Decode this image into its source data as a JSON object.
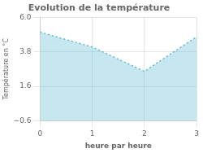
{
  "chart_data": {
    "type": "area",
    "title": "Evolution de la température",
    "xlabel": "heure par heure",
    "ylabel": "Température en °C",
    "x": [
      0,
      1,
      2,
      3
    ],
    "values": [
      5.05,
      4.1,
      2.55,
      4.75
    ],
    "color": "#5bb8d4",
    "line_style": "dotted",
    "xlim": [
      0,
      3
    ],
    "ylim": [
      -0.6,
      6.0
    ],
    "xticks": [
      0,
      1,
      2,
      3
    ],
    "yticks": [
      {
        "value": -0.6,
        "label": "−0.6"
      },
      1.6,
      3.8,
      {
        "value": 6.0,
        "label": "6.0"
      }
    ],
    "grid": true
  }
}
